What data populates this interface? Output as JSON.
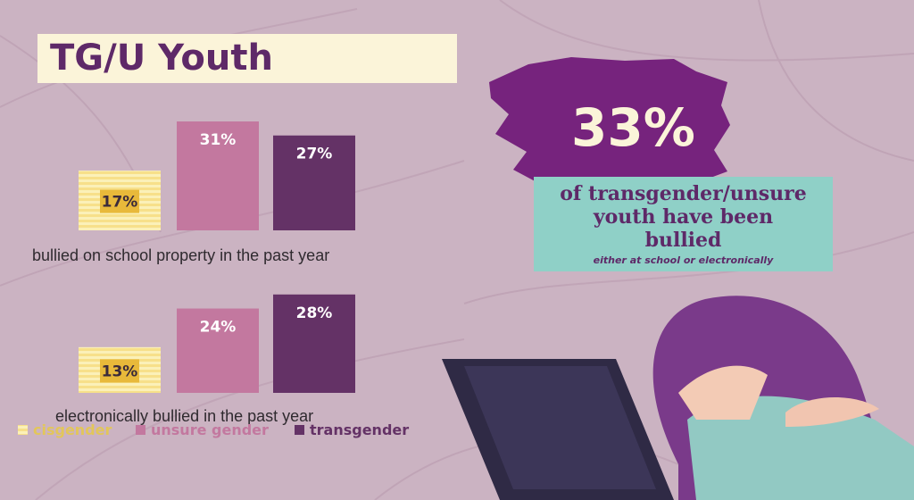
{
  "title": "TG/U Youth",
  "headline": {
    "percent": "33%",
    "line1": "of transgender/unsure",
    "line2": "youth have been",
    "line3": "bullied",
    "subtext": "either at school or electronically"
  },
  "colors": {
    "background": "#cbb3c2",
    "cisgender": "#f7e08a",
    "unsure_gender": "#c3789f",
    "transgender": "#643266",
    "accent_purple": "#76237d",
    "callout": "#8fd0c7",
    "cream": "#fbf4d9"
  },
  "chart_data": [
    {
      "type": "bar",
      "xlabel": "bullied on school property in the past year",
      "categories": [
        "cisgender",
        "unsure gender",
        "transgender"
      ],
      "values": [
        17,
        31,
        27
      ],
      "labels": [
        "17%",
        "31%",
        "27%"
      ]
    },
    {
      "type": "bar",
      "xlabel": "electronically bullied in the past year",
      "categories": [
        "cisgender",
        "unsure gender",
        "transgender"
      ],
      "values": [
        13,
        24,
        28
      ],
      "labels": [
        "13%",
        "24%",
        "28%"
      ]
    }
  ],
  "legend": [
    "cisgender",
    "unsure gender",
    "transgender"
  ]
}
